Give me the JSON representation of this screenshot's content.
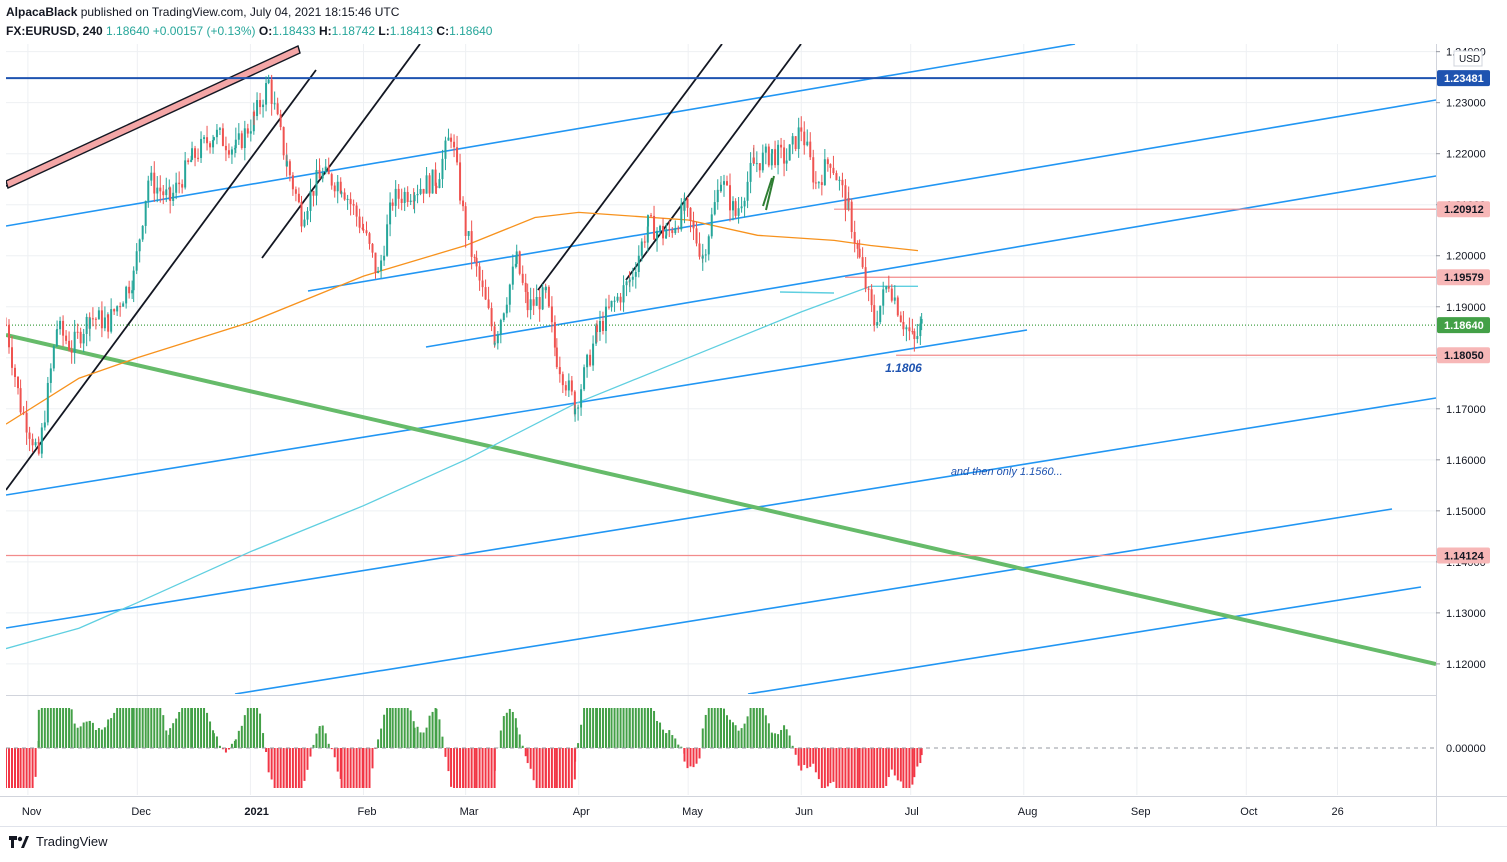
{
  "header": {
    "author": "AlpacaBlack",
    "published_text": " published on TradingView.com, July 04, 2021 18:15:46 UTC",
    "symbol": "FX:EURUSD, 240",
    "last": "1.18640",
    "change": "+0.00157 (+0.13%)",
    "o_label": "O:",
    "o_value": "1.18433",
    "h_label": "H:",
    "h_value": "1.18742",
    "l_label": "L:",
    "l_value": "1.18413",
    "c_label": "C:",
    "c_value": "1.18640"
  },
  "footer": {
    "brand": "TradingView"
  },
  "chart_data": {
    "type": "candlestick",
    "symbol": "FX:EURUSD",
    "interval": "240",
    "currency_label": "USD",
    "price_axis_ticks": [
      "1.24000",
      "1.23000",
      "1.22000",
      "1.21000",
      "1.20000",
      "1.19000",
      "1.18000",
      "1.17000",
      "1.16000",
      "1.15000",
      "1.14000",
      "1.13000",
      "1.12000"
    ],
    "ylim": [
      1.1141,
      1.2415
    ],
    "time_axis_labels": [
      {
        "label": "Nov",
        "date": "2020-11-01"
      },
      {
        "label": "Dec",
        "date": "2020-12-01"
      },
      {
        "label": "2021",
        "date": "2021-01-01"
      },
      {
        "label": "Feb",
        "date": "2021-02-01"
      },
      {
        "label": "Mar",
        "date": "2021-03-01"
      },
      {
        "label": "Apr",
        "date": "2021-04-01"
      },
      {
        "label": "May",
        "date": "2021-05-01"
      },
      {
        "label": "Jun",
        "date": "2021-06-01"
      },
      {
        "label": "Jul",
        "date": "2021-07-01"
      },
      {
        "label": "Aug",
        "date": "2021-08-01"
      },
      {
        "label": "Sep",
        "date": "2021-09-01"
      },
      {
        "label": "Oct",
        "date": "2021-10-01"
      },
      {
        "label": "26",
        "date": "2021-10-26"
      }
    ],
    "xlim": [
      "2020-10-26",
      "2021-11-22"
    ],
    "price_path": [
      [
        "2020-10-26",
        1.1865
      ],
      [
        "2020-10-30",
        1.1705
      ],
      [
        "2020-11-04",
        1.161
      ],
      [
        "2020-11-09",
        1.186
      ],
      [
        "2020-11-13",
        1.182
      ],
      [
        "2020-11-18",
        1.188
      ],
      [
        "2020-11-23",
        1.187
      ],
      [
        "2020-11-30",
        1.196
      ],
      [
        "2020-12-04",
        1.215
      ],
      [
        "2020-12-10",
        1.211
      ],
      [
        "2020-12-16",
        1.219
      ],
      [
        "2020-12-22",
        1.224
      ],
      [
        "2020-12-28",
        1.221
      ],
      [
        "2021-01-02",
        1.227
      ],
      [
        "2021-01-06",
        1.234
      ],
      [
        "2021-01-11",
        1.218
      ],
      [
        "2021-01-15",
        1.208
      ],
      [
        "2021-01-20",
        1.216
      ],
      [
        "2021-01-26",
        1.214
      ],
      [
        "2021-02-01",
        1.205
      ],
      [
        "2021-02-05",
        1.196
      ],
      [
        "2021-02-09",
        1.211
      ],
      [
        "2021-02-15",
        1.213
      ],
      [
        "2021-02-21",
        1.215
      ],
      [
        "2021-02-25",
        1.224
      ],
      [
        "2021-03-01",
        1.205
      ],
      [
        "2021-03-04",
        1.197
      ],
      [
        "2021-03-09",
        1.184
      ],
      [
        "2021-03-15",
        1.199
      ],
      [
        "2021-03-18",
        1.19
      ],
      [
        "2021-03-23",
        1.192
      ],
      [
        "2021-03-26",
        1.18
      ],
      [
        "2021-03-31",
        1.1705
      ],
      [
        "2021-04-06",
        1.185
      ],
      [
        "2021-04-10",
        1.19
      ],
      [
        "2021-04-15",
        1.195
      ],
      [
        "2021-04-20",
        1.206
      ],
      [
        "2021-04-25",
        1.204
      ],
      [
        "2021-04-30",
        1.209
      ],
      [
        "2021-05-05",
        1.2
      ],
      [
        "2021-05-10",
        1.215
      ],
      [
        "2021-05-14",
        1.208
      ],
      [
        "2021-05-19",
        1.218
      ],
      [
        "2021-05-24",
        1.22
      ],
      [
        "2021-05-28",
        1.219
      ],
      [
        "2021-06-01",
        1.225
      ],
      [
        "2021-06-05",
        1.214
      ],
      [
        "2021-06-09",
        1.219
      ],
      [
        "2021-06-14",
        1.209
      ],
      [
        "2021-06-17",
        1.199
      ],
      [
        "2021-06-21",
        1.187
      ],
      [
        "2021-06-25",
        1.195
      ],
      [
        "2021-06-29",
        1.187
      ],
      [
        "2021-07-02",
        1.183
      ],
      [
        "2021-07-04",
        1.1864
      ]
    ],
    "moving_averages": [
      {
        "color": "#f7921d",
        "points": [
          [
            "2020-10-26",
            1.167
          ],
          [
            "2020-11-15",
            1.176
          ],
          [
            "2020-12-01",
            1.18
          ],
          [
            "2021-01-01",
            1.187
          ],
          [
            "2021-02-01",
            1.196
          ],
          [
            "2021-03-01",
            1.202
          ],
          [
            "2021-03-20",
            1.2075
          ],
          [
            "2021-04-01",
            1.2085
          ],
          [
            "2021-05-01",
            1.207
          ],
          [
            "2021-05-20",
            1.204
          ],
          [
            "2021-06-10",
            1.203
          ],
          [
            "2021-06-20",
            1.202
          ],
          [
            "2021-07-03",
            1.201
          ]
        ]
      },
      {
        "color": "#5fcfe0",
        "points": [
          [
            "2020-10-26",
            1.123
          ],
          [
            "2020-11-15",
            1.127
          ],
          [
            "2020-12-01",
            1.132
          ],
          [
            "2021-01-01",
            1.142
          ],
          [
            "2021-02-01",
            1.151
          ],
          [
            "2021-03-01",
            1.16
          ],
          [
            "2021-03-31",
            1.171
          ],
          [
            "2021-05-01",
            1.18
          ],
          [
            "2021-06-01",
            1.189
          ],
          [
            "2021-06-20",
            1.194
          ],
          [
            "2021-07-03",
            1.194
          ]
        ]
      }
    ],
    "price_labels": [
      {
        "value": "1.23481",
        "color": "#1e53b0"
      },
      {
        "value": "1.20912",
        "color": "#f7b7b7"
      },
      {
        "value": "1.19579",
        "color": "#f7b7b7"
      },
      {
        "value": "1.18640",
        "color": "#43a047"
      },
      {
        "value": "1.18050",
        "color": "#f7b7b7"
      },
      {
        "value": "1.14124",
        "color": "#f7b7b7"
      }
    ],
    "horizontal_lines": [
      {
        "price": 1.23481,
        "color": "#1e53b0",
        "style": "solid"
      },
      {
        "price": 1.20912,
        "color": "#f28b8b",
        "from": "2021-06-10"
      },
      {
        "price": 1.19579,
        "color": "#f28b8b",
        "from": "2021-06-13"
      },
      {
        "price": 1.1864,
        "color": "#43a047",
        "style": "dotted"
      },
      {
        "price": 1.1805,
        "color": "#f28b8b",
        "from": "2021-06-27"
      },
      {
        "price": 1.14124,
        "color": "#f28b8b"
      }
    ],
    "annotations": [
      {
        "text": "1.1806",
        "date": "2021-06-24",
        "price": 1.1772,
        "color": "#1e53b0"
      },
      {
        "text": "and then only 1.1560...",
        "date": "2021-07-12",
        "price": 1.157,
        "color": "#1e53b0"
      }
    ],
    "oscillator": {
      "zero_label": "0.00000",
      "positive_color": "#43a047",
      "negative_color": "#f23645"
    },
    "colors": {
      "up": "#26a69a",
      "down": "#ef5350",
      "trend_blue": "#2196f3",
      "green_line": "#66bb6a",
      "black_lines": "#131722"
    }
  }
}
